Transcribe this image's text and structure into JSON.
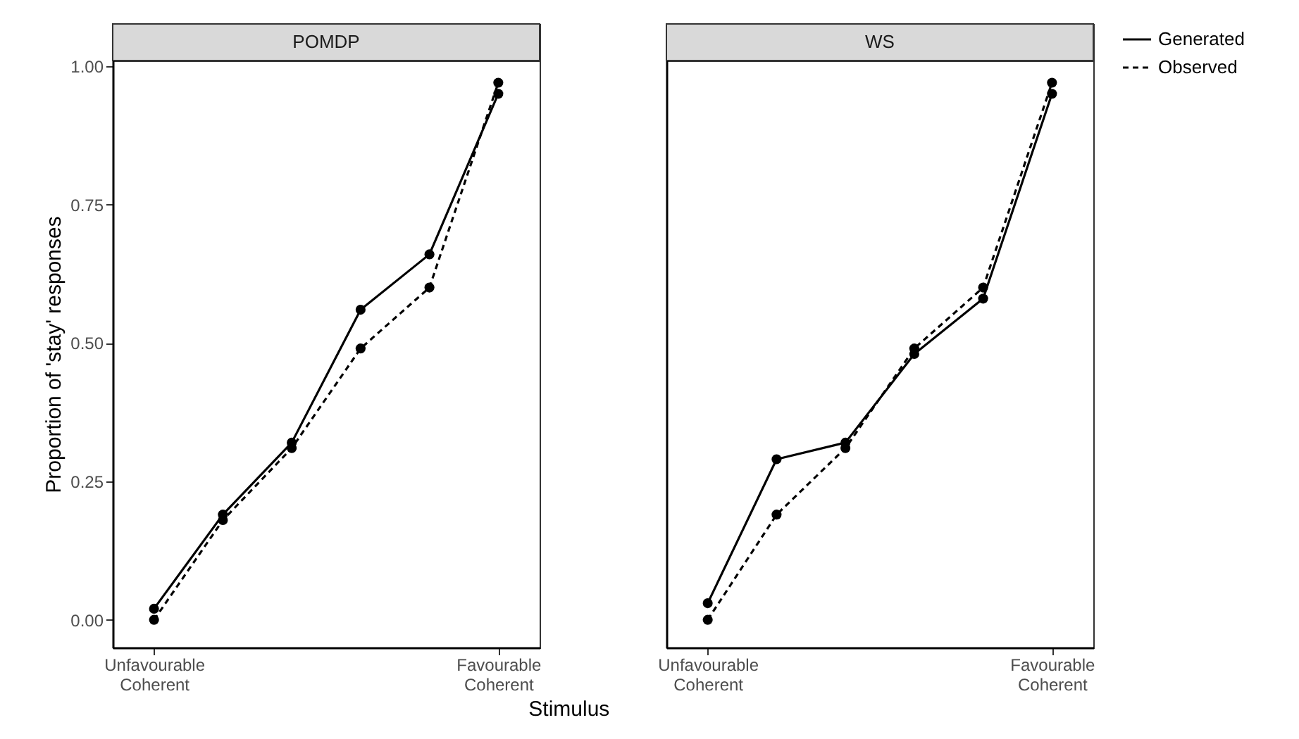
{
  "chart_data": [
    {
      "type": "line",
      "title": "POMDP",
      "xlabel": "Stimulus",
      "ylabel": "Proportion of 'stay' responses",
      "categories": [
        "Unfavourable\nCoherent",
        null,
        null,
        null,
        null,
        "Favourable\nCoherent"
      ],
      "ylim": [
        -0.05,
        1.01
      ],
      "yticks": [
        {
          "value": 0,
          "label": "0.00"
        },
        {
          "value": 0.25,
          "label": "0.25"
        },
        {
          "value": 0.5,
          "label": "0.50"
        },
        {
          "value": 0.75,
          "label": "0.75"
        },
        {
          "value": 1,
          "label": "1.00"
        }
      ],
      "marker": "circle",
      "legend": "right",
      "series": [
        {
          "name": "Generated",
          "color": "#000000",
          "line_style": "solid",
          "values": [
            0.02,
            0.19,
            0.32,
            0.56,
            0.66,
            0.95
          ]
        },
        {
          "name": "Observed",
          "color": "#000000",
          "line_style": "dashed",
          "values": [
            0.0,
            0.18,
            0.31,
            0.49,
            0.6,
            0.97
          ]
        }
      ]
    },
    {
      "type": "line",
      "title": "WS",
      "categories": [
        "Unfavourable\nCoherent",
        null,
        null,
        null,
        null,
        "Favourable\nCoherent"
      ],
      "ylim": [
        -0.05,
        1.01
      ],
      "tick_labels": "x",
      "marker": "circle",
      "legend": "right",
      "series": [
        {
          "name": "Generated",
          "color": "#000000",
          "line_style": "solid",
          "values": [
            0.03,
            0.29,
            0.32,
            0.48,
            0.58,
            0.95
          ]
        },
        {
          "name": "Observed",
          "color": "#000000",
          "line_style": "dashed",
          "values": [
            0.0,
            0.19,
            0.31,
            0.49,
            0.6,
            0.97
          ]
        }
      ]
    }
  ]
}
